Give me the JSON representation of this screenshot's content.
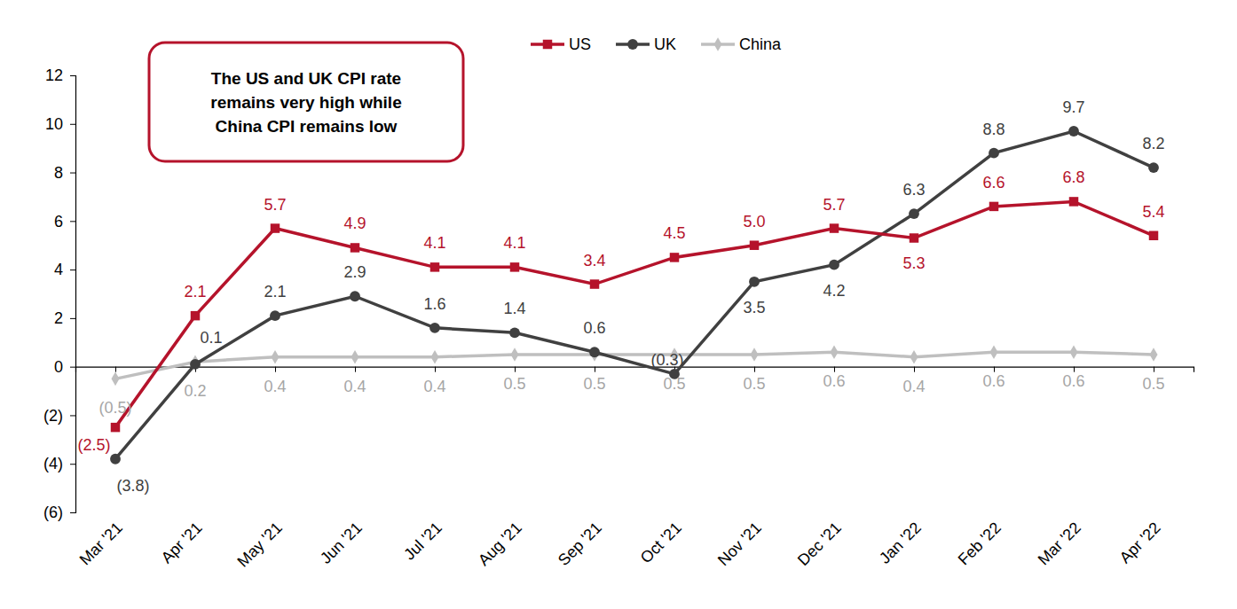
{
  "chart_data": {
    "type": "line",
    "annotation": [
      "The US and UK CPI rate",
      "remains very high while",
      "China CPI remains low"
    ],
    "categories": [
      "Mar '21",
      "Apr '21",
      "May '21",
      "Jun '21",
      "Jul '21",
      "Aug '21",
      "Sep '21",
      "Oct '21",
      "Nov '21",
      "Dec '21",
      "Jan '22",
      "Feb '22",
      "Mar '22",
      "Apr '22"
    ],
    "series": [
      {
        "name": "US",
        "color": "#b5132b",
        "marker": "square",
        "values": [
          -2.5,
          2.1,
          5.7,
          4.9,
          4.1,
          4.1,
          3.4,
          4.5,
          5.0,
          5.7,
          5.3,
          6.6,
          6.8,
          5.4
        ],
        "value_labels": [
          "(2.5)",
          "2.1",
          "5.7",
          "4.9",
          "4.1",
          "4.1",
          "3.4",
          "4.5",
          "5.0",
          "5.7",
          "5.3",
          "6.6",
          "6.8",
          "5.4"
        ]
      },
      {
        "name": "UK",
        "color": "#404040",
        "marker": "circle",
        "values": [
          -3.8,
          0.1,
          2.1,
          2.9,
          1.6,
          1.4,
          0.6,
          -0.3,
          3.5,
          4.2,
          6.3,
          8.8,
          9.7,
          8.2
        ],
        "value_labels": [
          "(3.8)",
          "0.1",
          "2.1",
          "2.9",
          "1.6",
          "1.4",
          "0.6",
          "(0.3)",
          "3.5",
          "4.2",
          "6.3",
          "8.8",
          "9.7",
          "8.2"
        ]
      },
      {
        "name": "China",
        "color": "#bfbfbf",
        "marker": "diamond",
        "values": [
          -0.5,
          0.2,
          0.4,
          0.4,
          0.4,
          0.5,
          0.5,
          0.5,
          0.5,
          0.6,
          0.4,
          0.6,
          0.6,
          0.5
        ],
        "value_labels": [
          "(0.5)",
          "0.2",
          "0.4",
          "0.4",
          "0.4",
          "0.5",
          "0.5",
          "0.5",
          "0.5",
          "0.6",
          "0.4",
          "0.6",
          "0.6",
          "0.5"
        ]
      }
    ],
    "ylim": [
      -6,
      12
    ],
    "yticks": [
      {
        "value": -6,
        "label": "(6)"
      },
      {
        "value": -4,
        "label": "(4)"
      },
      {
        "value": -2,
        "label": "(2)"
      },
      0,
      2,
      4,
      6,
      8,
      10,
      12
    ],
    "grid": false,
    "legend": "top",
    "data_labels": true
  }
}
